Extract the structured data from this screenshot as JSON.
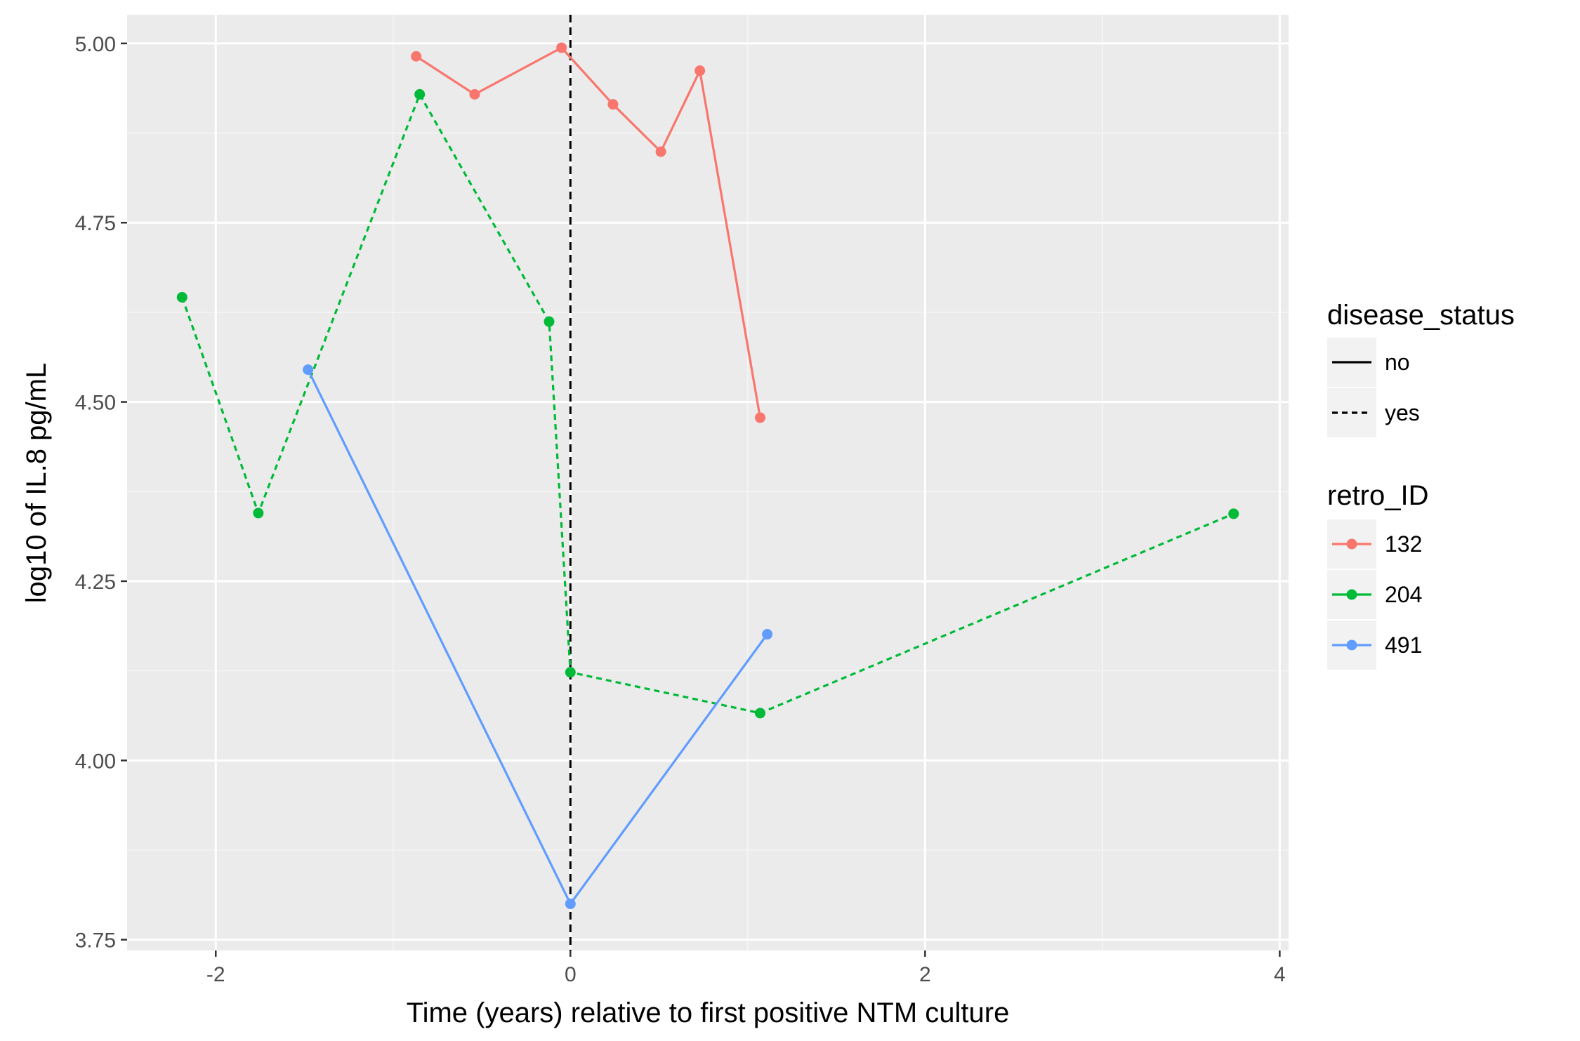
{
  "chart_data": {
    "type": "line",
    "title": "",
    "xlabel": "Time (years) relative to first positive NTM culture",
    "ylabel": "log10 of IL.8 pg/mL",
    "xlim": [
      -2.5,
      4.05
    ],
    "ylim": [
      3.735,
      5.04
    ],
    "x_ticks": [
      -2,
      0,
      2,
      4
    ],
    "x_tick_labels": [
      "-2",
      "0",
      "2",
      "4"
    ],
    "y_ticks": [
      3.75,
      4.0,
      4.25,
      4.5,
      4.75,
      5.0
    ],
    "y_tick_labels": [
      "3.75",
      "4.00",
      "4.25",
      "4.50",
      "4.75",
      "5.00"
    ],
    "grid": true,
    "reference_line": {
      "x": 0,
      "style": "dashed",
      "color": "#000000"
    },
    "legend_placement": "right",
    "series": [
      {
        "name": "132",
        "color": "#F8766D",
        "disease_status": "no",
        "dash": "solid",
        "x": [
          -0.87,
          -0.54,
          -0.05,
          0.24,
          0.51,
          0.73,
          1.07
        ],
        "y": [
          4.982,
          4.929,
          4.994,
          4.915,
          4.849,
          4.962,
          4.478
        ]
      },
      {
        "name": "204",
        "color": "#00BA38",
        "disease_status": "yes",
        "dash": "dashed",
        "x": [
          -2.19,
          -1.76,
          -0.85,
          -0.12,
          0.0,
          1.07,
          3.74
        ],
        "y": [
          4.646,
          4.345,
          4.929,
          4.612,
          4.123,
          4.066,
          4.344
        ]
      },
      {
        "name": "491",
        "color": "#619CFF",
        "disease_status": "no",
        "dash": "solid",
        "x": [
          -1.48,
          0.0,
          1.11
        ],
        "y": [
          4.545,
          3.8,
          4.176
        ]
      }
    ],
    "legends": [
      {
        "title": "disease_status",
        "entries": [
          {
            "label": "no",
            "dash": "solid",
            "color": "#000000"
          },
          {
            "label": "yes",
            "dash": "dashed",
            "color": "#000000"
          }
        ]
      },
      {
        "title": "retro_ID",
        "entries": [
          {
            "label": "132",
            "color": "#F8766D"
          },
          {
            "label": "204",
            "color": "#00BA38"
          },
          {
            "label": "491",
            "color": "#619CFF"
          }
        ]
      }
    ]
  }
}
